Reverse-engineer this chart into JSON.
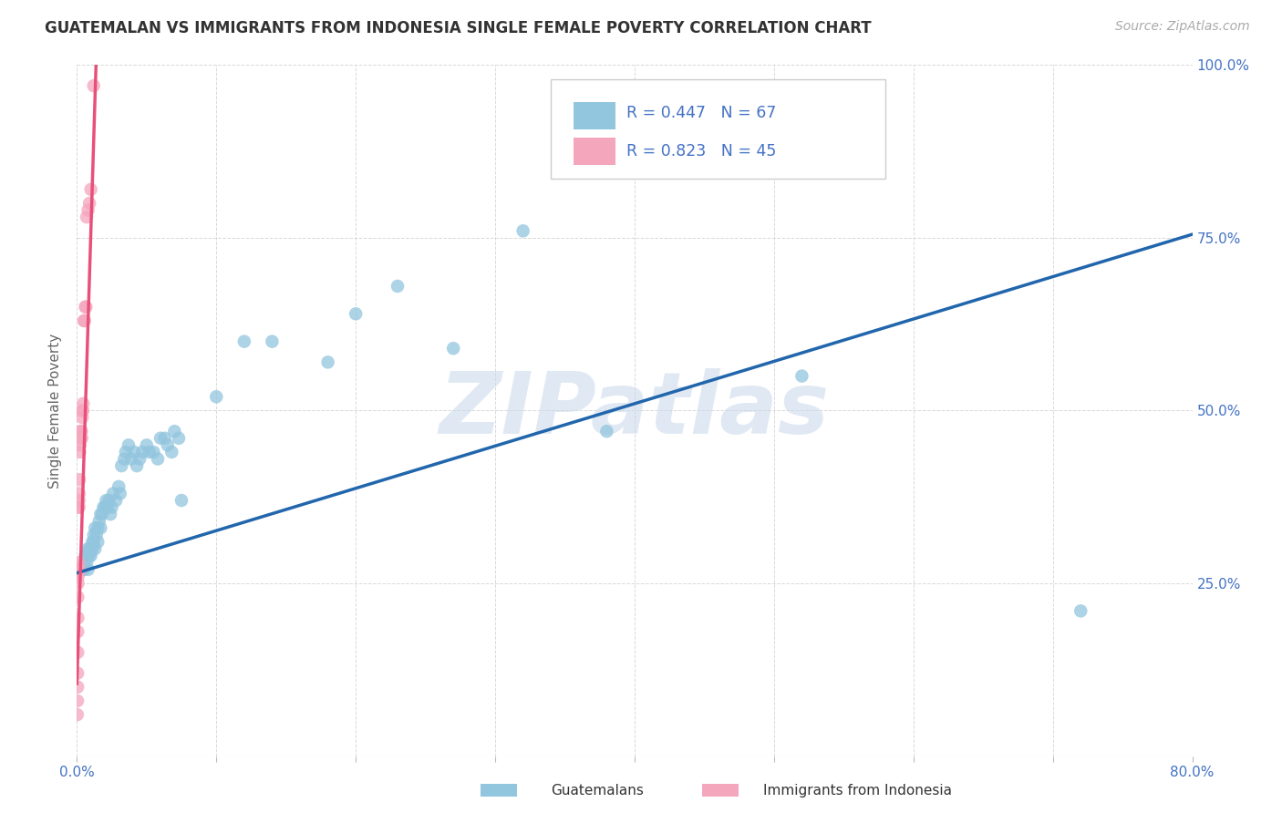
{
  "title": "GUATEMALAN VS IMMIGRANTS FROM INDONESIA SINGLE FEMALE POVERTY CORRELATION CHART",
  "source": "Source: ZipAtlas.com",
  "ylabel": "Single Female Poverty",
  "watermark": "ZIPatlas",
  "blue_label": "Guatemalans",
  "pink_label": "Immigrants from Indonesia",
  "blue_R": 0.447,
  "blue_N": 67,
  "pink_R": 0.823,
  "pink_N": 45,
  "xlim": [
    0.0,
    0.8
  ],
  "ylim": [
    0.0,
    1.0
  ],
  "xtick_positions": [
    0.0,
    0.1,
    0.2,
    0.3,
    0.4,
    0.5,
    0.6,
    0.7,
    0.8
  ],
  "xticklabels": [
    "0.0%",
    "",
    "",
    "",
    "",
    "",
    "",
    "",
    "80.0%"
  ],
  "ytick_positions": [
    0.0,
    0.25,
    0.5,
    0.75,
    1.0
  ],
  "yticklabels_right": [
    "",
    "25.0%",
    "50.0%",
    "75.0%",
    "100.0%"
  ],
  "blue_color": "#92c5de",
  "blue_line_color": "#2166ac",
  "pink_color": "#f4a6bd",
  "pink_line_color": "#e8507a",
  "title_color": "#333333",
  "tick_color": "#4472c4",
  "blue_scatter_x": [
    0.004,
    0.005,
    0.005,
    0.006,
    0.007,
    0.007,
    0.008,
    0.008,
    0.009,
    0.009,
    0.01,
    0.01,
    0.011,
    0.011,
    0.012,
    0.012,
    0.013,
    0.013,
    0.014,
    0.015,
    0.015,
    0.016,
    0.017,
    0.017,
    0.018,
    0.019,
    0.02,
    0.021,
    0.022,
    0.023,
    0.024,
    0.025,
    0.026,
    0.028,
    0.03,
    0.031,
    0.032,
    0.034,
    0.035,
    0.037,
    0.039,
    0.041,
    0.043,
    0.045,
    0.047,
    0.05,
    0.052,
    0.055,
    0.058,
    0.06,
    0.063,
    0.065,
    0.068,
    0.07,
    0.073,
    0.075,
    0.1,
    0.12,
    0.14,
    0.18,
    0.2,
    0.23,
    0.27,
    0.32,
    0.38,
    0.52,
    0.72
  ],
  "blue_scatter_y": [
    0.27,
    0.27,
    0.28,
    0.29,
    0.28,
    0.29,
    0.27,
    0.3,
    0.29,
    0.3,
    0.3,
    0.29,
    0.31,
    0.3,
    0.31,
    0.32,
    0.33,
    0.3,
    0.32,
    0.33,
    0.31,
    0.34,
    0.35,
    0.33,
    0.35,
    0.36,
    0.36,
    0.37,
    0.36,
    0.37,
    0.35,
    0.36,
    0.38,
    0.37,
    0.39,
    0.38,
    0.42,
    0.43,
    0.44,
    0.45,
    0.43,
    0.44,
    0.42,
    0.43,
    0.44,
    0.45,
    0.44,
    0.44,
    0.43,
    0.46,
    0.46,
    0.45,
    0.44,
    0.47,
    0.46,
    0.37,
    0.52,
    0.6,
    0.6,
    0.57,
    0.64,
    0.68,
    0.59,
    0.76,
    0.47,
    0.55,
    0.21
  ],
  "pink_scatter_x": [
    0.0003,
    0.0004,
    0.0005,
    0.0005,
    0.0006,
    0.0006,
    0.0007,
    0.0007,
    0.0008,
    0.0008,
    0.0009,
    0.0009,
    0.001,
    0.001,
    0.001,
    0.001,
    0.0011,
    0.0011,
    0.0012,
    0.0012,
    0.0013,
    0.0014,
    0.0015,
    0.0016,
    0.0018,
    0.002,
    0.0022,
    0.0025,
    0.0028,
    0.003,
    0.0032,
    0.0035,
    0.0038,
    0.004,
    0.0043,
    0.0045,
    0.005,
    0.0055,
    0.006,
    0.0065,
    0.007,
    0.008,
    0.009,
    0.01,
    0.012
  ],
  "pink_scatter_y": [
    0.06,
    0.08,
    0.1,
    0.12,
    0.15,
    0.18,
    0.2,
    0.23,
    0.25,
    0.265,
    0.26,
    0.27,
    0.27,
    0.27,
    0.27,
    0.27,
    0.27,
    0.27,
    0.27,
    0.28,
    0.36,
    0.36,
    0.37,
    0.38,
    0.4,
    0.44,
    0.45,
    0.46,
    0.47,
    0.47,
    0.47,
    0.46,
    0.49,
    0.5,
    0.5,
    0.51,
    0.63,
    0.63,
    0.65,
    0.65,
    0.78,
    0.79,
    0.8,
    0.82,
    0.97
  ],
  "blue_line_x": [
    0.0,
    0.8
  ],
  "blue_line_y": [
    0.265,
    0.755
  ],
  "pink_line_x": [
    0.0,
    0.014
  ],
  "pink_line_y": [
    0.105,
    1.02
  ]
}
